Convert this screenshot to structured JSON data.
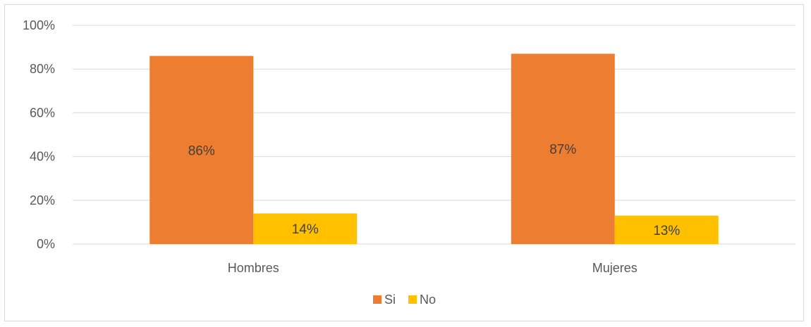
{
  "chart_data": {
    "type": "bar",
    "categories": [
      "Hombres",
      "Mujeres"
    ],
    "series": [
      {
        "name": "Si",
        "values": [
          86,
          87
        ],
        "labels": [
          "86%",
          "87%"
        ],
        "color": "#ED7D31"
      },
      {
        "name": "No",
        "values": [
          14,
          13
        ],
        "labels": [
          "14%",
          "13%"
        ],
        "color": "#FFC000"
      }
    ],
    "y_ticks": [
      "0%",
      "20%",
      "40%",
      "60%",
      "80%",
      "100%"
    ],
    "ylim": [
      0,
      100
    ],
    "grid": true,
    "legend_position": "bottom",
    "gridline_color": "#d9d9d9"
  }
}
